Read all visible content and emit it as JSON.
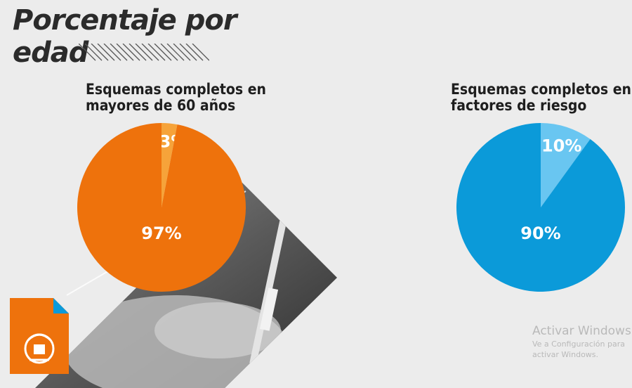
{
  "page": {
    "title_line1": "Porcentaje por",
    "title_line2": "edad"
  },
  "chart_data": [
    {
      "type": "pie",
      "title_line1": "Esquemas completos en",
      "title_line2": "mayores de 60 años",
      "slices": [
        {
          "label": "97%",
          "value": 97,
          "color": "#ee720c"
        },
        {
          "label": "3%",
          "value": 3,
          "color": "#f6a33a"
        }
      ]
    },
    {
      "type": "pie",
      "title_line1": "Esquemas completos en",
      "title_line2": "factores de riesgo",
      "slices": [
        {
          "label": "90%",
          "value": 90,
          "color": "#0b9ad9"
        },
        {
          "label": "10%",
          "value": 10,
          "color": "#69c6f1"
        }
      ]
    }
  ],
  "watermark": {
    "title": "Activar Windows",
    "subtitle": "Ve a Configuración para activar Windows."
  },
  "icons": {
    "hatch": "diagonal-hatch-icon",
    "document": "document-logo-icon"
  }
}
